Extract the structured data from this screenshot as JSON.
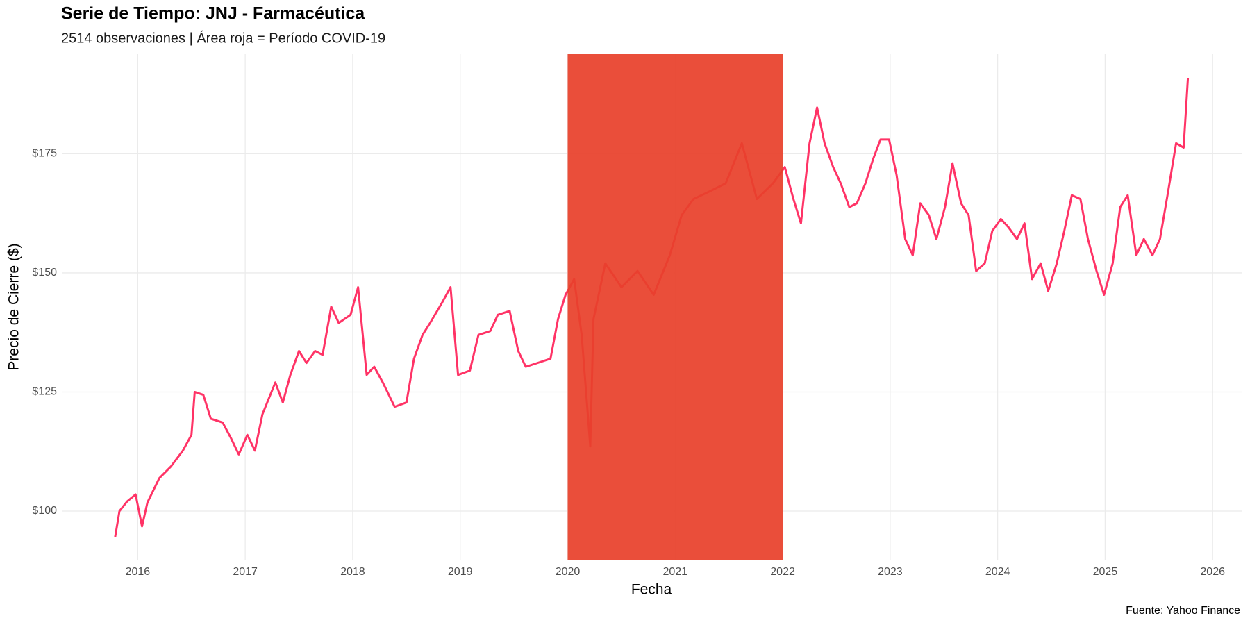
{
  "chart_data": {
    "type": "line",
    "title": "Serie de Tiempo: JNJ - Farmacéutica",
    "subtitle": "2514 observaciones | Área roja = Período COVID-19",
    "x_label": "Fecha",
    "y_label": "Precio de Cierre ($)",
    "caption": "Fuente: Yahoo Finance",
    "x": [
      2015.79,
      2015.83,
      2015.9,
      2015.98,
      2016.04,
      2016.09,
      2016.2,
      2016.31,
      2016.42,
      2016.5,
      2016.53,
      2016.61,
      2016.68,
      2016.79,
      2016.87,
      2016.94,
      2017.02,
      2017.09,
      2017.16,
      2017.28,
      2017.35,
      2017.42,
      2017.5,
      2017.57,
      2017.65,
      2017.72,
      2017.8,
      2017.87,
      2017.98,
      2018.05,
      2018.13,
      2018.2,
      2018.28,
      2018.39,
      2018.5,
      2018.57,
      2018.65,
      2018.72,
      2018.83,
      2018.91,
      2018.98,
      2019.09,
      2019.17,
      2019.28,
      2019.35,
      2019.46,
      2019.54,
      2019.61,
      2019.72,
      2019.84,
      2019.91,
      2019.98,
      2020.06,
      2020.13,
      2020.21,
      2020.24,
      2020.35,
      2020.5,
      2020.65,
      2020.8,
      2020.95,
      2021.06,
      2021.17,
      2021.32,
      2021.47,
      2021.62,
      2021.76,
      2021.91,
      2022.02,
      2022.1,
      2022.17,
      2022.25,
      2022.32,
      2022.39,
      2022.47,
      2022.54,
      2022.62,
      2022.69,
      2022.77,
      2022.84,
      2022.91,
      2022.99,
      2023.06,
      2023.14,
      2023.21,
      2023.28,
      2023.36,
      2023.43,
      2023.51,
      2023.58,
      2023.66,
      2023.73,
      2023.8,
      2023.88,
      2023.95,
      2024.03,
      2024.1,
      2024.18,
      2024.25,
      2024.32,
      2024.4,
      2024.47,
      2024.55,
      2024.62,
      2024.69,
      2024.77,
      2024.84,
      2024.92,
      2024.99,
      2025.07,
      2025.14,
      2025.21,
      2025.29,
      2025.36,
      2025.44,
      2025.51,
      2025.58,
      2025.66,
      2025.73,
      2025.77
    ],
    "values": [
      94.6,
      100,
      102,
      103.5,
      96.8,
      101.8,
      106.9,
      109.4,
      112.7,
      116,
      125,
      124.4,
      119.4,
      118.6,
      115.2,
      111.9,
      116,
      112.7,
      120.3,
      127,
      122.8,
      128.6,
      133.6,
      131.1,
      133.6,
      132.8,
      142.9,
      139.5,
      141.2,
      147,
      128.6,
      130.3,
      127,
      121.9,
      122.8,
      132,
      137,
      139.5,
      143.7,
      147,
      128.6,
      129.5,
      137,
      137.8,
      141.2,
      142,
      133.6,
      130.3,
      131.1,
      132,
      140.3,
      145.4,
      148.7,
      137,
      113.6,
      140.3,
      152,
      147,
      150.4,
      145.4,
      153.7,
      162.1,
      165.5,
      167.1,
      168.8,
      177.2,
      165.5,
      168.8,
      172.2,
      165.5,
      160.4,
      177.2,
      184.7,
      177.2,
      172.2,
      168.8,
      163.8,
      164.6,
      168.8,
      173.8,
      178,
      178,
      170.5,
      157.1,
      153.7,
      164.6,
      162.1,
      157.1,
      163.8,
      173,
      164.6,
      162.1,
      150.4,
      152,
      158.8,
      161.3,
      159.6,
      157.1,
      160.4,
      148.7,
      152,
      146.2,
      152,
      158.8,
      166.3,
      165.5,
      157.1,
      150.4,
      145.4,
      152,
      163.8,
      166.3,
      153.7,
      157.1,
      153.7,
      157.1,
      166.3,
      177.2,
      176.3,
      190.9
    ],
    "color": "#ff3366",
    "shade": [
      2020,
      2022
    ],
    "shade_color": "#e8412b",
    "xlim": [
      2015.3,
      2026.27
    ],
    "xticks": [
      2016,
      2017,
      2018,
      2019,
      2020,
      2021,
      2022,
      2023,
      2024,
      2025,
      2026
    ],
    "ylim": [
      89.8,
      195.9
    ],
    "yticks": [
      {
        "value": 100,
        "label": "$100"
      },
      {
        "value": 125,
        "label": "$125"
      },
      {
        "value": 150,
        "label": "$150"
      },
      {
        "value": 175,
        "label": "$175"
      }
    ],
    "grid": true
  }
}
